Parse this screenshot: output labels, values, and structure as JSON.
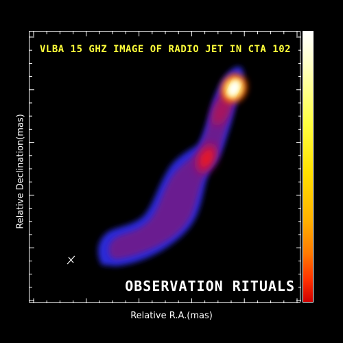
{
  "figure": {
    "title": "VLBA 15 GHZ IMAGE OF RADIO JET IN CTA 102",
    "watermark": "OBSERVATION RITUALS",
    "xlabel": "Relative R.A.(mas)",
    "ylabel": "Relative Declination(mas)"
  },
  "colors": {
    "background": "#000000",
    "title": "#ffff3a",
    "jet_core": "#ffffff",
    "jet_mid": "#ff2000",
    "jet_outer": "#7a1a8c",
    "jet_edge": "#2a2ad8",
    "colorbar_low": "#d00000",
    "colorbar_high": "#ffffff"
  },
  "colorbar": {
    "colormap": "red-yellow-white"
  }
}
